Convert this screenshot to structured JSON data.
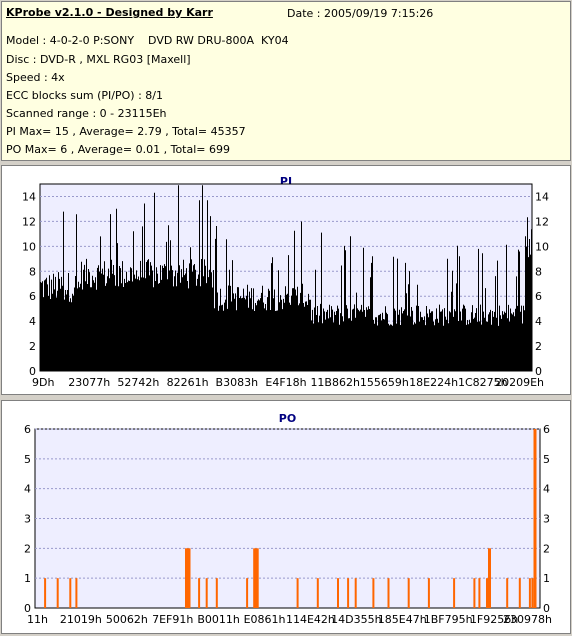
{
  "info": {
    "title": "KProbe v2.1.0 - Designed by Karr",
    "date": "Date : 2005/09/19 7:15:26",
    "lines": [
      "Model : 4-0-2-0 P:SONY    DVD RW DRU-800A  KY04",
      "Disc : DVD-R , MXL RG03 [Maxell]",
      "Speed : 4x",
      "ECC blocks sum (PI/PO) : 8/1",
      "Scanned range : 0 - 23115Eh",
      "PI Max= 15 , Average= 2.79 , Total= 45357",
      "PO Max= 6 , Average= 0.01 , Total= 699"
    ]
  },
  "colors": {
    "pi_bars": "#000000",
    "po_bars": "#ff6600",
    "plot_bg": "#eeeeff",
    "grid": "#9999cc",
    "panel_bg": "#ffffe1"
  },
  "chart_data": [
    {
      "type": "bar",
      "title": "PI",
      "ylim": [
        0,
        15
      ],
      "yticks": [
        "0",
        "2",
        "4",
        "6",
        "8",
        "10",
        "12",
        "14"
      ],
      "xticks": [
        "9Dh",
        "23077h",
        "52742h",
        "82261h",
        "B3083h",
        "E4F18h",
        "11B862h",
        "155659h",
        "18E224h",
        "1C8275h",
        "20209Eh"
      ],
      "grid": true,
      "summary": {
        "max": 15,
        "average": 2.79,
        "total": 45357
      }
    },
    {
      "type": "bar",
      "title": "PO",
      "ylim": [
        0,
        6
      ],
      "yticks": [
        "0",
        "1",
        "2",
        "3",
        "4",
        "5",
        "6"
      ],
      "xticks": [
        "11h",
        "21019h",
        "50062h",
        "7EF91h",
        "B0011h",
        "E0861h",
        "114E42h",
        "14D355h",
        "185E47h",
        "1BF795h",
        "1F9256h",
        "230978h"
      ],
      "grid": true,
      "x": [
        0.02,
        0.045,
        0.07,
        0.082,
        0.3,
        0.305,
        0.325,
        0.34,
        0.36,
        0.42,
        0.435,
        0.44,
        0.52,
        0.56,
        0.6,
        0.62,
        0.635,
        0.67,
        0.7,
        0.74,
        0.78,
        0.83,
        0.87,
        0.88,
        0.895,
        0.9,
        0.935,
        0.96,
        0.98,
        0.985,
        0.99
      ],
      "values": [
        1,
        1,
        1,
        1,
        2,
        2,
        1,
        1,
        1,
        1,
        2,
        2,
        1,
        1,
        1,
        1,
        1,
        1,
        1,
        1,
        1,
        1,
        1,
        1,
        1,
        2,
        1,
        1,
        1,
        1,
        6
      ],
      "summary": {
        "max": 6,
        "average": 0.01,
        "total": 699
      }
    }
  ]
}
